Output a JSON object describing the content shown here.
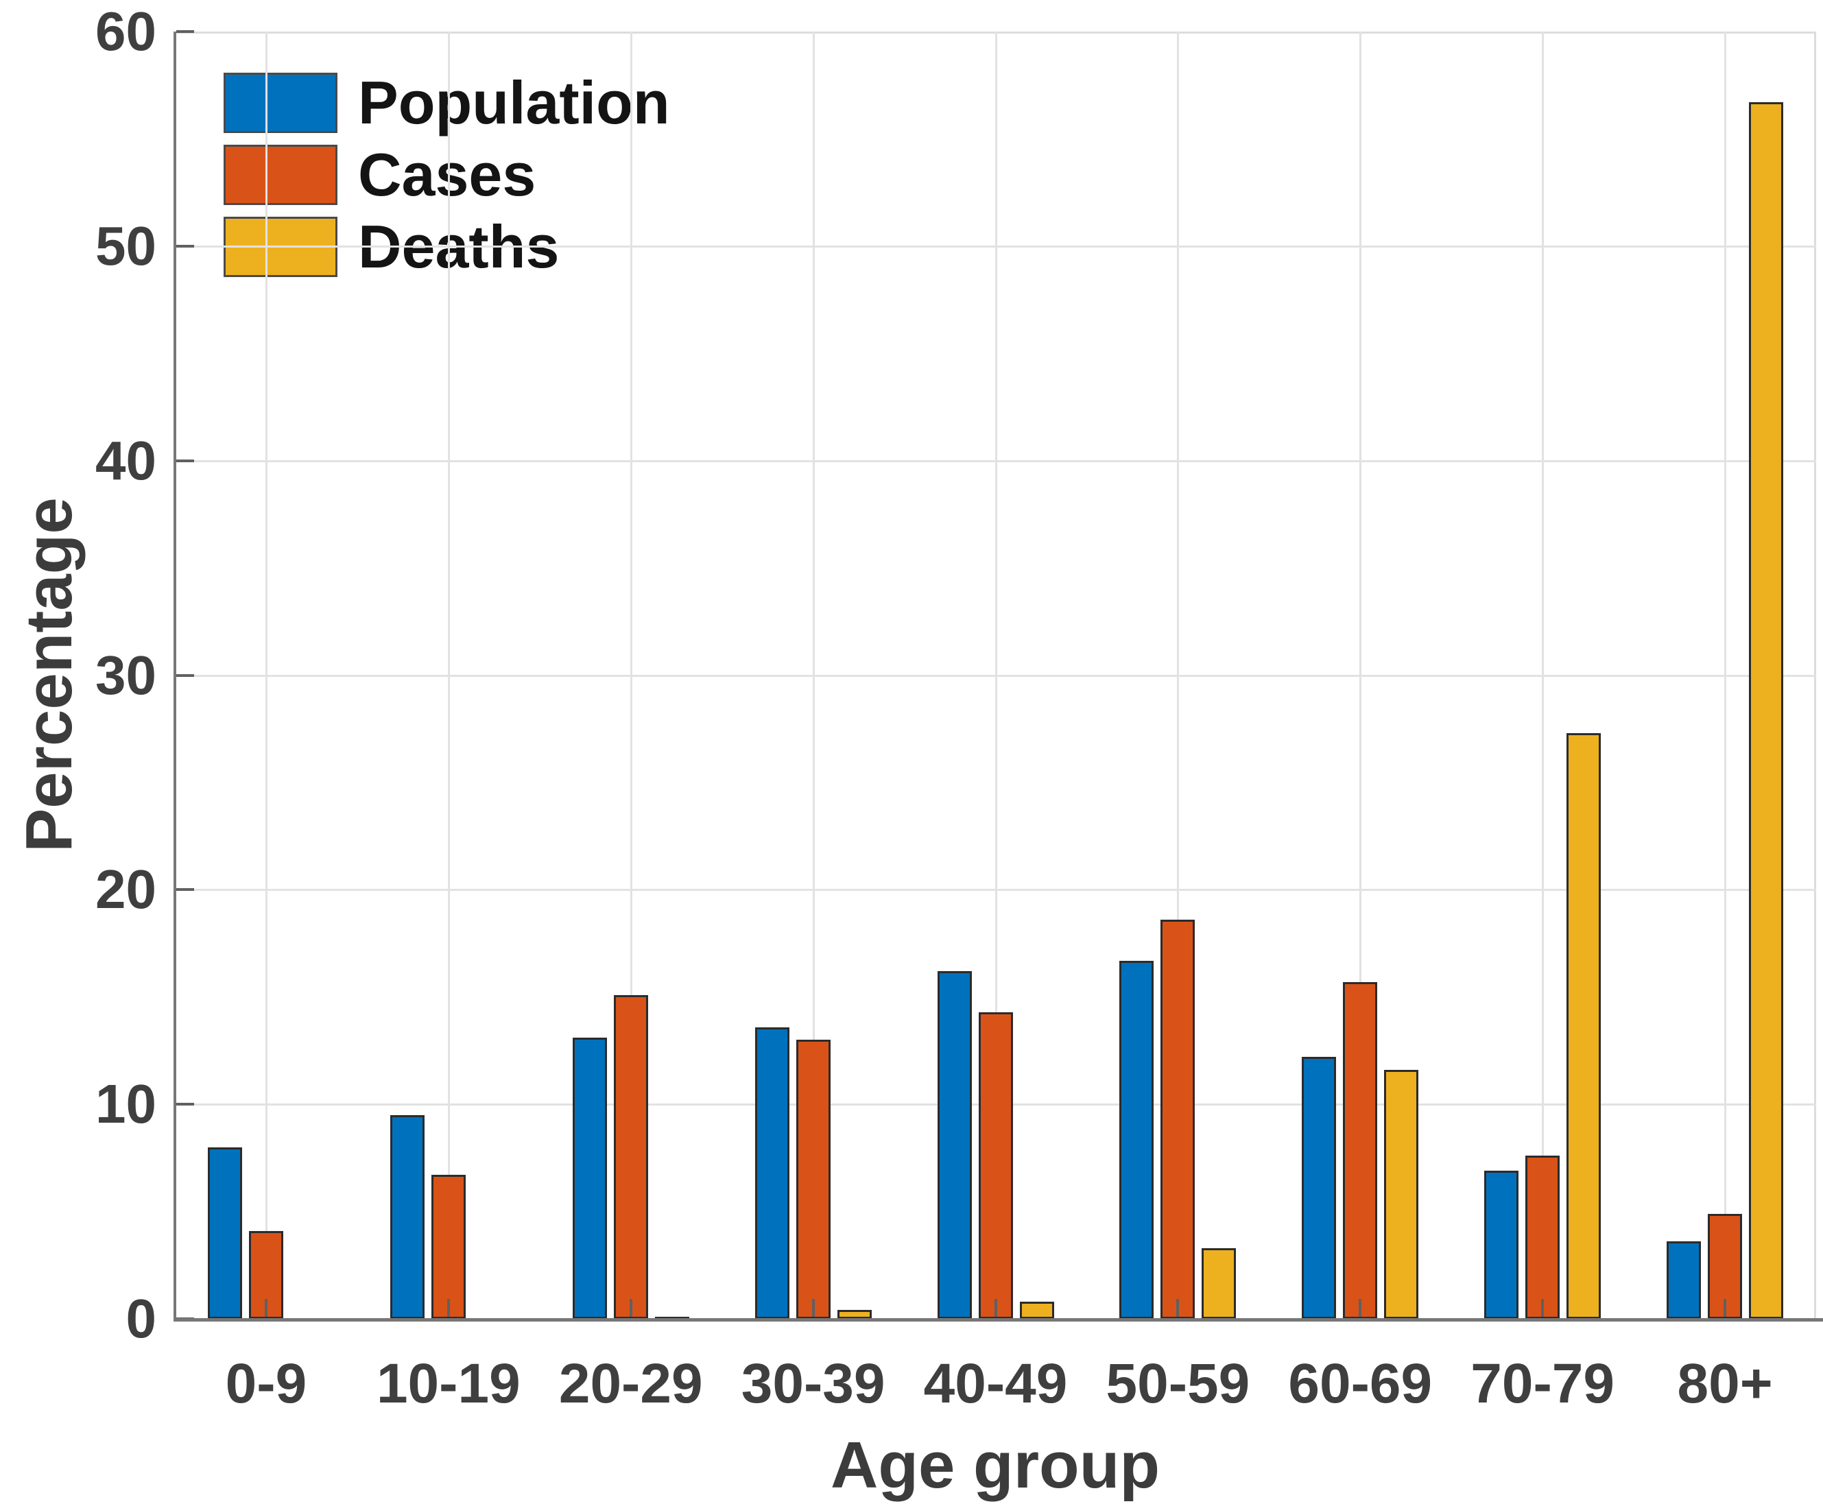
{
  "figure": {
    "background": "#FFFFFF"
  },
  "style": {
    "axis_color": "#777777",
    "grid_color": "#E2E2E2",
    "box_color": "#DCDCDC",
    "tick_color": "#606060",
    "tick_label_color": "#3F3F3F",
    "axis_label_color": "#3C3C3C",
    "legend_text_color": "#141414",
    "bar_edge_color": "#2B2B2B"
  },
  "chart_data": {
    "type": "bar",
    "title": "",
    "xlabel": "Age group",
    "ylabel": "Percentage",
    "categories": [
      "0-9",
      "10-19",
      "20-29",
      "30-39",
      "40-49",
      "50-59",
      "60-69",
      "70-79",
      "80+"
    ],
    "series": [
      {
        "name": "Population",
        "color": "#0072BD",
        "values": [
          8.0,
          9.5,
          13.1,
          13.6,
          16.2,
          16.7,
          12.2,
          6.9,
          3.6
        ]
      },
      {
        "name": "Cases",
        "color": "#D95319",
        "values": [
          4.1,
          6.7,
          15.1,
          13.0,
          14.3,
          18.6,
          15.7,
          7.6,
          4.9
        ]
      },
      {
        "name": "Deaths",
        "color": "#EDB120",
        "values": [
          0,
          0,
          0.1,
          0.4,
          0.8,
          3.3,
          11.6,
          27.3,
          56.7
        ]
      }
    ],
    "ylim": [
      0,
      60
    ],
    "yticks": [
      0,
      10,
      20,
      30,
      40,
      50,
      60
    ],
    "grid": true,
    "legend_position": "top-left-inside"
  }
}
